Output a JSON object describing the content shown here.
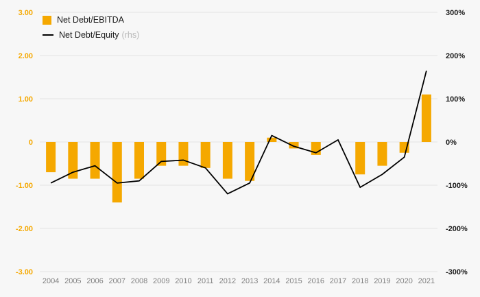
{
  "chart_data": {
    "type": "bar+line",
    "title": "",
    "categories": [
      "2004",
      "2005",
      "2006",
      "2007",
      "2008",
      "2009",
      "2010",
      "2011",
      "2012",
      "2013",
      "2014",
      "2015",
      "2016",
      "2017",
      "2018",
      "2019",
      "2020",
      "2021"
    ],
    "series": [
      {
        "name": "Net Debt/EBITDA",
        "type": "bar",
        "axis": "left",
        "color": "#F5A800",
        "values": [
          -0.7,
          -0.85,
          -0.85,
          -1.4,
          -0.85,
          -0.55,
          -0.55,
          -0.6,
          -0.85,
          -0.9,
          0.1,
          -0.15,
          -0.3,
          0,
          -0.75,
          -0.55,
          -0.25,
          1.1
        ]
      },
      {
        "name": "Net Debt/Equity",
        "type": "line",
        "axis": "right",
        "color": "#000000",
        "values": [
          -95,
          -70,
          -55,
          -95,
          -90,
          -45,
          -42,
          -60,
          -120,
          -95,
          15,
          -10,
          -25,
          5,
          -105,
          -75,
          -35,
          165
        ]
      }
    ],
    "left_axis": {
      "min": -3,
      "max": 3,
      "tick_values": [
        3,
        2,
        1,
        0,
        -1,
        -2,
        -3
      ],
      "tick_labels": [
        "3.00",
        "2.00",
        "1.00",
        "0",
        "-1.00",
        "-2.00",
        "-3.00"
      ],
      "color": "#F5A800"
    },
    "right_axis": {
      "min": -300,
      "max": 300,
      "tick_values": [
        300,
        200,
        100,
        0,
        -100,
        -200,
        -300
      ],
      "tick_labels": [
        "300%",
        "200%",
        "100%",
        "0%",
        "-100%",
        "-200%",
        "-300%"
      ],
      "color": "#1a1a1a"
    },
    "legend": [
      {
        "label": "Net Debt/EBITDA",
        "swatch": "bar",
        "color": "#F5A800"
      },
      {
        "label": "Net Debt/Equity",
        "suffix": "(rhs)",
        "swatch": "line",
        "color": "#000000"
      }
    ],
    "grid": true,
    "legend_position": "top-left",
    "background": "#F7F7F7",
    "gridline_color": "#E3E3E3",
    "x_label_color": "#808080"
  }
}
